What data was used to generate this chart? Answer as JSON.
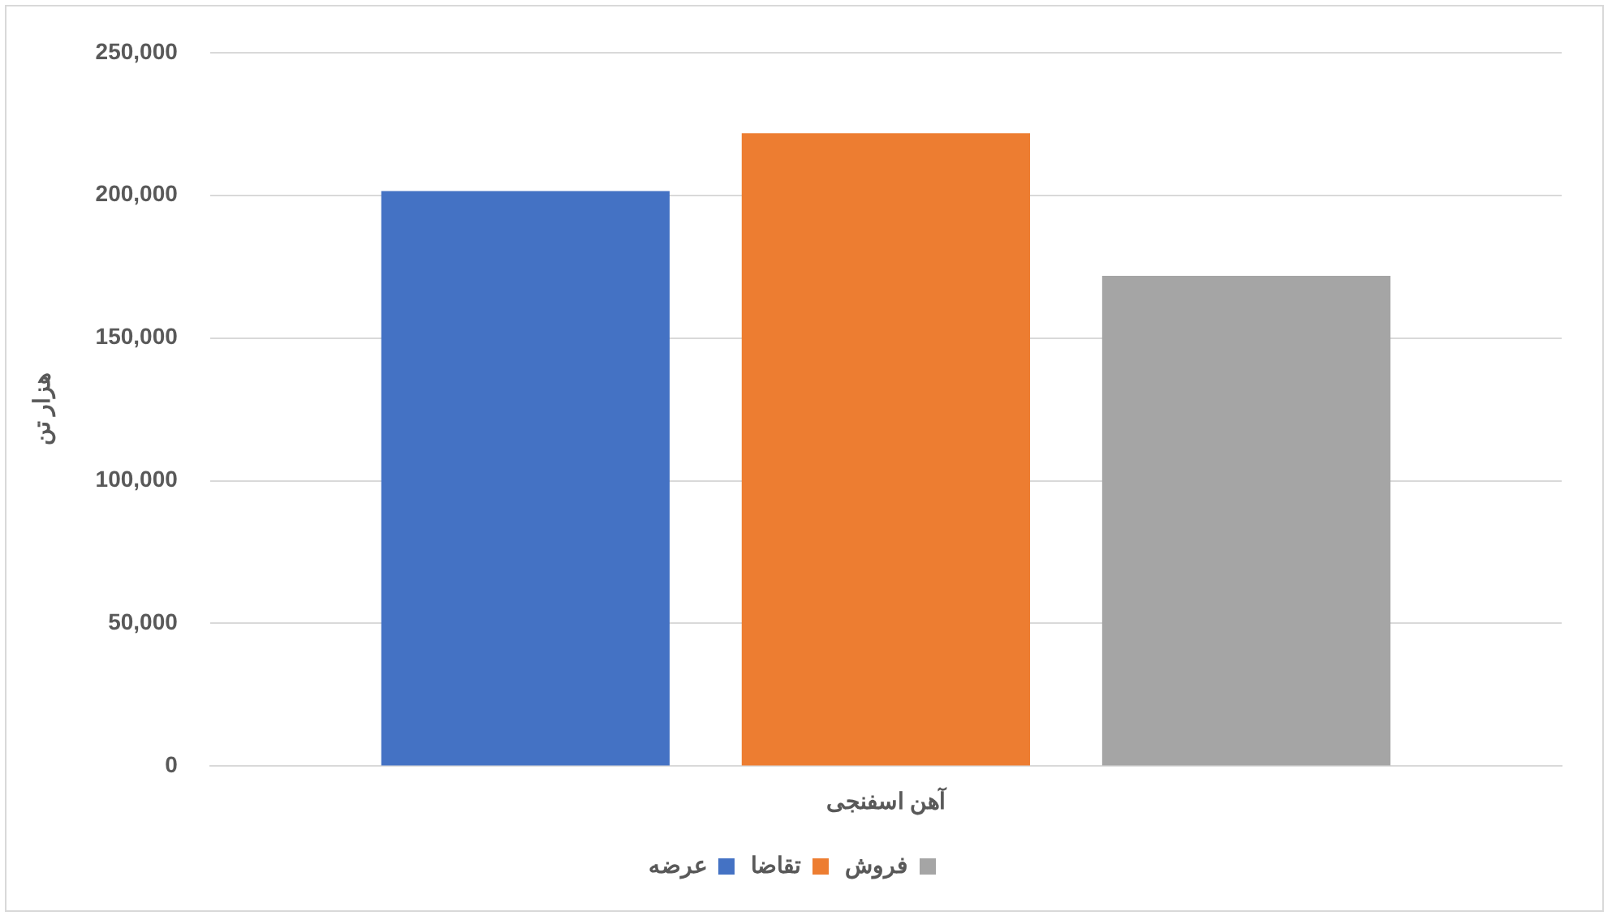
{
  "chart_data": {
    "type": "bar",
    "categories": [
      "آهن اسفنجی"
    ],
    "ylabel": "هزار تن",
    "series": [
      {
        "name": "عرضه",
        "color": "#4472c4",
        "values": [
          201500
        ]
      },
      {
        "name": "تقاضا",
        "color": "#ed7d31",
        "values": [
          221700
        ]
      },
      {
        "name": "فروش",
        "color": "#a5a5a5",
        "values": [
          171800
        ]
      }
    ],
    "ylim": [
      0,
      250000
    ],
    "yticks": [
      0,
      {
        "value": 50000,
        "label": "50,000"
      },
      {
        "value": 100000,
        "label": "100,000"
      },
      {
        "value": 150000,
        "label": "150,000"
      },
      {
        "value": 200000,
        "label": "200,000"
      },
      {
        "value": 250000,
        "label": "250,000"
      }
    ],
    "grid": "y",
    "legend": "bottom"
  }
}
